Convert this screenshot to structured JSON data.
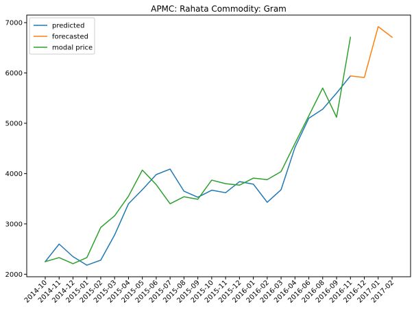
{
  "chart_data": {
    "type": "line",
    "title": "APMC: Rahata  Commodity: Gram",
    "xlabel": "",
    "ylabel": "",
    "ylim": [
      1950,
      7150
    ],
    "yticks": [
      2000,
      3000,
      4000,
      5000,
      6000,
      7000
    ],
    "grid": false,
    "legend_position": "top-left",
    "categories": [
      "2014-10",
      "2014-11",
      "2014-12",
      "2015-01",
      "2015-02",
      "2015-03",
      "2015-04",
      "2015-05",
      "2015-06",
      "2015-07",
      "2015-08",
      "2015-09",
      "2015-10",
      "2015-11",
      "2015-12",
      "2016-01",
      "2016-02",
      "2016-03",
      "2016-04",
      "2016-06",
      "2016-08",
      "2016-09",
      "2016-11",
      "2016-12",
      "2017-01",
      "2017-02"
    ],
    "series": [
      {
        "name": "predicted",
        "color": "#1f77b4",
        "values": [
          2250,
          2600,
          2350,
          2180,
          2280,
          2780,
          3400,
          3680,
          3980,
          4090,
          3650,
          3530,
          3670,
          3620,
          3840,
          3790,
          3430,
          3680,
          4520,
          5100,
          5280,
          5600,
          5940,
          null,
          null,
          null
        ]
      },
      {
        "name": "forecasted",
        "color": "#ff7f0e",
        "values": [
          null,
          null,
          null,
          null,
          null,
          null,
          null,
          null,
          null,
          null,
          null,
          null,
          null,
          null,
          null,
          null,
          null,
          null,
          null,
          null,
          null,
          null,
          5940,
          5910,
          6920,
          6710
        ]
      },
      {
        "name": "modal price",
        "color": "#2ca02c",
        "values": [
          2250,
          2330,
          2210,
          2330,
          2930,
          3160,
          3550,
          4070,
          3780,
          3400,
          3540,
          3490,
          3870,
          3800,
          3770,
          3910,
          3880,
          4040,
          4600,
          5150,
          5700,
          5120,
          6710,
          null,
          null,
          null
        ]
      }
    ]
  }
}
